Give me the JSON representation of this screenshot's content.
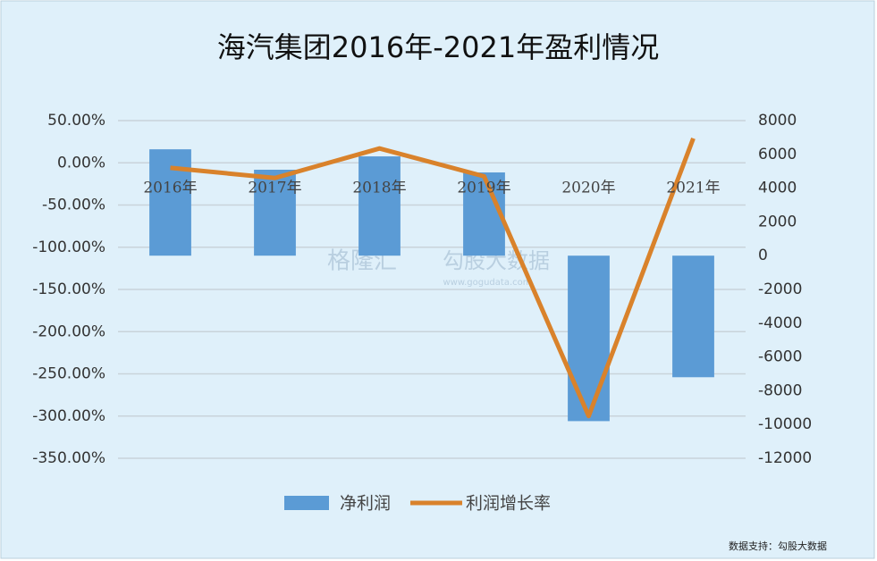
{
  "chart_data": {
    "type": "bar-line",
    "title": "海汽集团2016年-2021年盈利情况",
    "categories": [
      "2016年",
      "2017年",
      "2018年",
      "2019年",
      "2020年",
      "2021年"
    ],
    "series": [
      {
        "name": "净利润",
        "type": "bar",
        "axis": "y2",
        "color": "#5b9bd5",
        "values": [
          6300,
          5090,
          5880,
          4930,
          -9800,
          -7200
        ]
      },
      {
        "name": "利润增长率",
        "type": "line",
        "color": "#d9822b",
        "values": [
          -6,
          -18,
          17,
          -16,
          -300,
          29
        ]
      }
    ],
    "ylim": [
      -350,
      50
    ],
    "yticks": [
      {
        "value": 50,
        "label": "50.00%"
      },
      {
        "value": 0,
        "label": "0.00%"
      },
      {
        "value": -50,
        "label": "-50.00%"
      },
      {
        "value": -100,
        "label": "-100.00%"
      },
      {
        "value": -150,
        "label": "-150.00%"
      },
      {
        "value": -200,
        "label": "-200.00%"
      },
      {
        "value": -250,
        "label": "-250.00%"
      },
      {
        "value": -300,
        "label": "-300.00%"
      },
      {
        "value": -350,
        "label": "-350.00%"
      }
    ],
    "y2lim": [
      -12000,
      8000
    ],
    "y2ticks": [
      8000,
      6000,
      4000,
      2000,
      0,
      -2000,
      -4000,
      -6000,
      -8000,
      -10000,
      -12000
    ],
    "grid": true,
    "legend": "bottom",
    "watermarks": [
      "格隆汇",
      "勾股大数据",
      "www.gogudata.com"
    ],
    "source": "数据支持：勾股大数据"
  }
}
